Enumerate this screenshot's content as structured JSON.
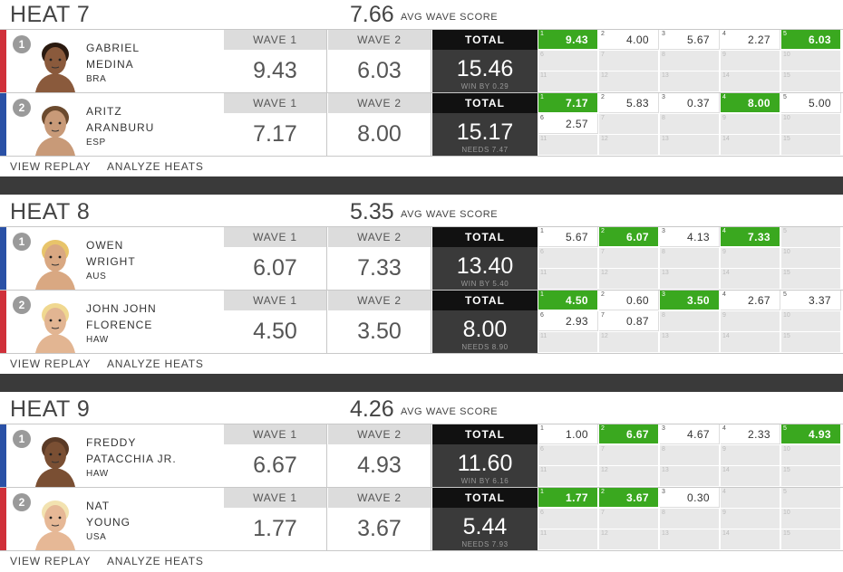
{
  "labels": {
    "avg_wave_score": "AVG WAVE SCORE",
    "wave1": "WAVE 1",
    "wave2": "WAVE 2",
    "total": "TOTAL",
    "view_replay": "VIEW REPLAY",
    "analyze_heats": "ANALYZE HEATS"
  },
  "colors": {
    "red": "#d0303a",
    "blue": "#2a51a6",
    "counted_wave": "#3aa81f",
    "total_bg": "#3a3a3a"
  },
  "heats": [
    {
      "title": "HEAT 7",
      "avg": "7.66",
      "surfers": [
        {
          "seed": "1",
          "color": "red",
          "first": "GABRIEL",
          "last": "MEDINA",
          "country": "BRA",
          "wave1": "9.43",
          "wave2": "6.03",
          "total": "15.46",
          "sub": "WIN BY 0.29",
          "waves": [
            {
              "n": "1",
              "s": "9.43",
              "c": true
            },
            {
              "n": "2",
              "s": "4.00"
            },
            {
              "n": "3",
              "s": "5.67"
            },
            {
              "n": "4",
              "s": "2.27"
            },
            {
              "n": "5",
              "s": "6.03",
              "c": true
            }
          ]
        },
        {
          "seed": "2",
          "color": "blue",
          "first": "ARITZ",
          "last": "ARANBURU",
          "country": "ESP",
          "wave1": "7.17",
          "wave2": "8.00",
          "total": "15.17",
          "sub": "NEEDS 7.47",
          "waves": [
            {
              "n": "1",
              "s": "7.17",
              "c": true
            },
            {
              "n": "2",
              "s": "5.83"
            },
            {
              "n": "3",
              "s": "0.37"
            },
            {
              "n": "4",
              "s": "8.00",
              "c": true
            },
            {
              "n": "5",
              "s": "5.00"
            },
            {
              "n": "6",
              "s": "2.57"
            }
          ]
        }
      ]
    },
    {
      "title": "HEAT 8",
      "avg": "5.35",
      "surfers": [
        {
          "seed": "1",
          "color": "blue",
          "first": "OWEN",
          "last": "WRIGHT",
          "country": "AUS",
          "wave1": "6.07",
          "wave2": "7.33",
          "total": "13.40",
          "sub": "WIN BY 5.40",
          "waves": [
            {
              "n": "1",
              "s": "5.67"
            },
            {
              "n": "2",
              "s": "6.07",
              "c": true
            },
            {
              "n": "3",
              "s": "4.13"
            },
            {
              "n": "4",
              "s": "7.33",
              "c": true
            }
          ]
        },
        {
          "seed": "2",
          "color": "red",
          "first": "JOHN JOHN",
          "last": "FLORENCE",
          "country": "HAW",
          "wave1": "4.50",
          "wave2": "3.50",
          "total": "8.00",
          "sub": "NEEDS 8.90",
          "waves": [
            {
              "n": "1",
              "s": "4.50",
              "c": true
            },
            {
              "n": "2",
              "s": "0.60"
            },
            {
              "n": "3",
              "s": "3.50",
              "c": true
            },
            {
              "n": "4",
              "s": "2.67"
            },
            {
              "n": "5",
              "s": "3.37"
            },
            {
              "n": "6",
              "s": "2.93"
            },
            {
              "n": "7",
              "s": "0.87"
            }
          ]
        }
      ]
    },
    {
      "title": "HEAT 9",
      "avg": "4.26",
      "surfers": [
        {
          "seed": "1",
          "color": "blue",
          "first": "FREDDY",
          "last": "PATACCHIA JR.",
          "country": "HAW",
          "wave1": "6.67",
          "wave2": "4.93",
          "total": "11.60",
          "sub": "WIN BY 6.16",
          "waves": [
            {
              "n": "1",
              "s": "1.00"
            },
            {
              "n": "2",
              "s": "6.67",
              "c": true
            },
            {
              "n": "3",
              "s": "4.67"
            },
            {
              "n": "4",
              "s": "2.33"
            },
            {
              "n": "5",
              "s": "4.93",
              "c": true
            }
          ]
        },
        {
          "seed": "2",
          "color": "red",
          "first": "NAT",
          "last": "YOUNG",
          "country": "USA",
          "wave1": "1.77",
          "wave2": "3.67",
          "total": "5.44",
          "sub": "NEEDS 7.93",
          "waves": [
            {
              "n": "1",
              "s": "1.77",
              "c": true
            },
            {
              "n": "2",
              "s": "3.67",
              "c": true
            },
            {
              "n": "3",
              "s": "0.30"
            }
          ]
        }
      ]
    }
  ]
}
